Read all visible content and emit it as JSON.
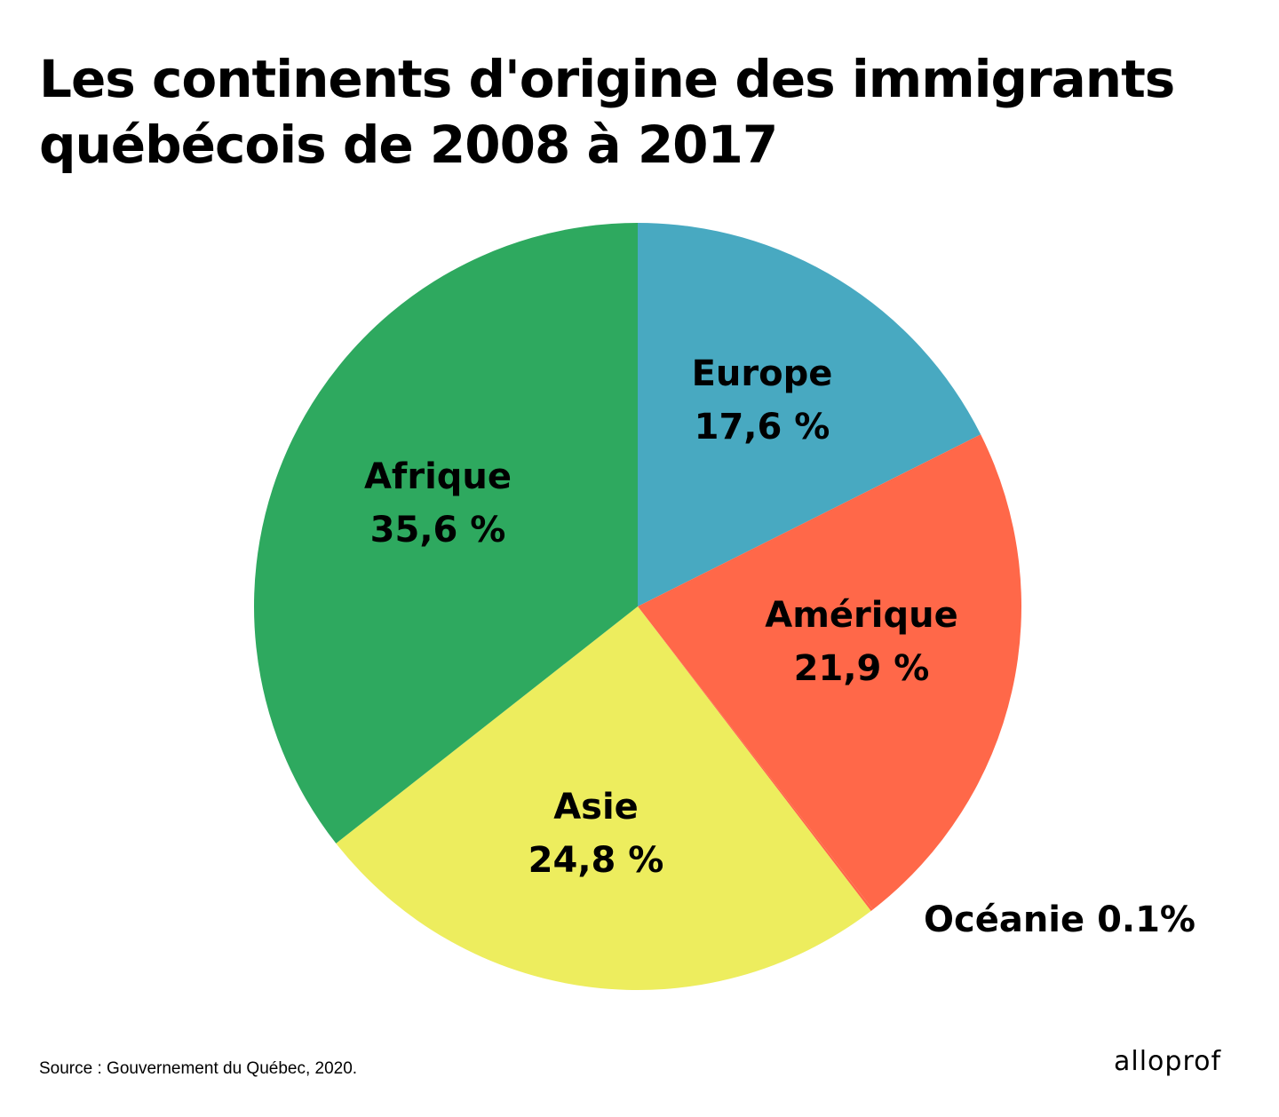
{
  "chart_data": {
    "type": "pie",
    "title": "Les continents d'origine des immigrants québécois de 2008 à 2017",
    "start": "top",
    "direction": "clockwise",
    "slices": [
      {
        "name": "Europe",
        "value": 17.6,
        "label": "17,6 %",
        "color": "#48A9C1"
      },
      {
        "name": "Amérique",
        "value": 21.9,
        "label": "21,9 %",
        "color": "#FF6849"
      },
      {
        "name": "Océanie",
        "value": 0.1,
        "label": "0.1%",
        "color": "#FF6849"
      },
      {
        "name": "Asie",
        "value": 24.8,
        "label": "24,8 %",
        "color": "#EDED5E"
      },
      {
        "name": "Afrique",
        "value": 35.6,
        "label": "35,6 %",
        "color": "#2EA95F"
      }
    ],
    "oceanie_label": "Océanie 0.1%"
  },
  "source": "Source : Gouvernement du Québec, 2020.",
  "logo": "alloprof"
}
